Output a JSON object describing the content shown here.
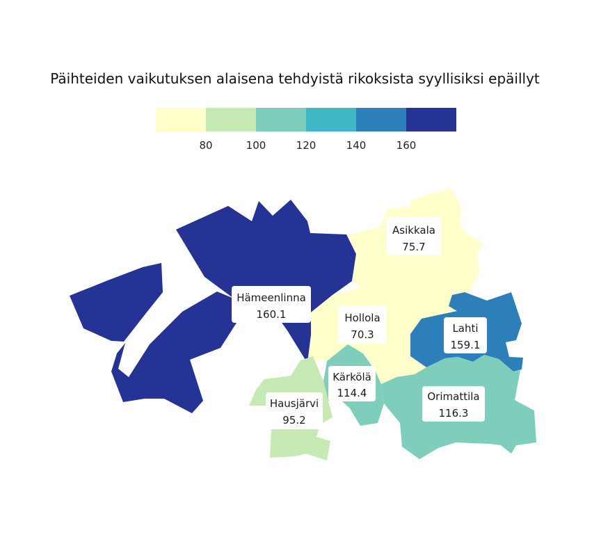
{
  "title": "Päihteiden vaikutuksen alaisena tehdyistä rikoksista syyllisiksi epäillyt",
  "legend": {
    "colors": [
      "#ffffcc",
      "#c7e9b4",
      "#7fcdbb",
      "#41b6c4",
      "#2c7fb8",
      "#253494"
    ],
    "ticks": [
      "80",
      "100",
      "120",
      "140",
      "160"
    ]
  },
  "chart_data": {
    "type": "choropleth",
    "title": "Päihteiden vaikutuksen alaisena tehdyistä rikoksista syyllisiksi epäillyt",
    "breaks": [
      80,
      100,
      120,
      140,
      160
    ],
    "regions": [
      {
        "name": "Hämeenlinna",
        "value": "160.1",
        "color": "#253494"
      },
      {
        "name": "Asikkala",
        "value": "75.7",
        "color": "#ffffcc"
      },
      {
        "name": "Hollola",
        "value": "70.3",
        "color": "#ffffcc"
      },
      {
        "name": "Lahti",
        "value": "159.1",
        "color": "#2c7fb8"
      },
      {
        "name": "Kärkölä",
        "value": "114.4",
        "color": "#7fcdbb"
      },
      {
        "name": "Orimattila",
        "value": "116.3",
        "color": "#7fcdbb"
      },
      {
        "name": "Hausjärvi",
        "value": "95.2",
        "color": "#c7e9b4"
      }
    ]
  }
}
